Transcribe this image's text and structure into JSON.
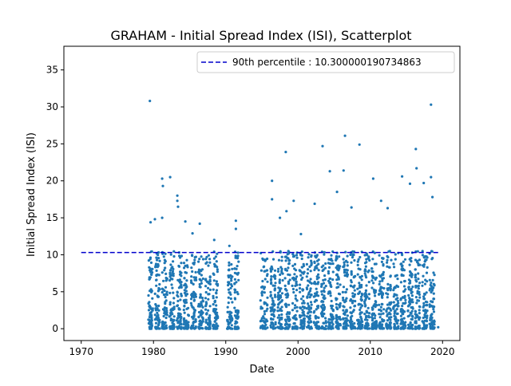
{
  "chart_data": {
    "type": "scatter",
    "title": "GRAHAM - Initial Spread Index (ISI), Scatterplot",
    "xlabel": "Date",
    "ylabel": "Initial Spread Index (ISI)",
    "xlim": [
      1967.6,
      2022.4
    ],
    "ylim": [
      -1.6,
      38.2
    ],
    "x_ticks": [
      1970,
      1980,
      1990,
      2000,
      2010,
      2020
    ],
    "y_ticks": [
      0,
      5,
      10,
      15,
      20,
      25,
      30,
      35
    ],
    "legend": {
      "location": "upper right",
      "entries": [
        "90th percentile : 10.300000190734863"
      ]
    },
    "percentile_line": {
      "label": "90th percentile : 10.300000190734863",
      "value": 10.300000190734863,
      "x_range": [
        1970,
        2019.5
      ],
      "color": "#0000cc"
    },
    "point_color": "#1f77b4",
    "series": [
      {
        "points": [
          [
            1979.5,
            30.8
          ],
          [
            1979.6,
            14.4
          ],
          [
            1980.2,
            14.8
          ],
          [
            1981.2,
            15.0
          ],
          [
            1981.2,
            20.3
          ],
          [
            1981.3,
            19.3
          ],
          [
            1982.3,
            20.5
          ],
          [
            1983.3,
            18.0
          ],
          [
            1983.3,
            17.3
          ],
          [
            1983.4,
            16.5
          ],
          [
            1984.4,
            14.5
          ],
          [
            1985.4,
            12.9
          ],
          [
            1986.4,
            14.2
          ],
          [
            1988.4,
            12.0
          ],
          [
            1990.5,
            11.2
          ],
          [
            1991.4,
            14.6
          ],
          [
            1991.4,
            13.5
          ],
          [
            1996.4,
            20.0
          ],
          [
            1996.4,
            17.5
          ],
          [
            1997.5,
            15.0
          ],
          [
            1998.3,
            23.9
          ],
          [
            1998.4,
            15.9
          ],
          [
            1999.4,
            17.3
          ],
          [
            2000.4,
            12.8
          ],
          [
            2002.3,
            16.9
          ],
          [
            2003.4,
            24.7
          ],
          [
            2004.4,
            21.3
          ],
          [
            2005.4,
            18.5
          ],
          [
            2006.3,
            21.4
          ],
          [
            2006.5,
            26.1
          ],
          [
            2007.4,
            16.4
          ],
          [
            2008.5,
            24.9
          ],
          [
            2010.4,
            20.3
          ],
          [
            2011.5,
            17.3
          ],
          [
            2012.4,
            16.3
          ],
          [
            2014.4,
            20.6
          ],
          [
            2015.5,
            19.6
          ],
          [
            2016.3,
            24.3
          ],
          [
            2016.4,
            21.7
          ],
          [
            2017.4,
            19.7
          ],
          [
            2018.4,
            30.3
          ],
          [
            2018.4,
            20.5
          ],
          [
            2018.6,
            17.8
          ],
          [
            2019.4,
            0.2
          ]
        ]
      }
    ],
    "season_bands": [
      [
        1979.3,
        1979.9
      ],
      [
        1980.2,
        1980.9
      ],
      [
        1981.2,
        1981.9
      ],
      [
        1982.2,
        1982.9
      ],
      [
        1983.2,
        1983.9
      ],
      [
        1984.2,
        1984.9
      ],
      [
        1985.2,
        1985.9
      ],
      [
        1986.2,
        1986.9
      ],
      [
        1987.2,
        1987.9
      ],
      [
        1988.2,
        1988.9
      ],
      [
        1990.2,
        1990.9
      ],
      [
        1991.2,
        1991.8
      ],
      [
        1994.8,
        1995.8
      ],
      [
        1996.2,
        1996.9
      ],
      [
        1997.2,
        1997.9
      ],
      [
        1998.2,
        1998.9
      ],
      [
        1999.2,
        1999.9
      ],
      [
        2000.2,
        2000.9
      ],
      [
        2001.2,
        2001.9
      ],
      [
        2002.2,
        2002.9
      ],
      [
        2003.2,
        2003.9
      ],
      [
        2004.2,
        2004.9
      ],
      [
        2005.2,
        2005.9
      ],
      [
        2006.2,
        2006.9
      ],
      [
        2007.2,
        2007.9
      ],
      [
        2008.2,
        2008.9
      ],
      [
        2009.2,
        2009.9
      ],
      [
        2010.2,
        2010.9
      ],
      [
        2011.2,
        2011.9
      ],
      [
        2012.2,
        2012.9
      ],
      [
        2013.2,
        2013.9
      ],
      [
        2014.2,
        2014.9
      ],
      [
        2015.2,
        2015.9
      ],
      [
        2016.2,
        2016.9
      ],
      [
        2017.2,
        2017.9
      ],
      [
        2018.2,
        2018.9
      ]
    ]
  }
}
